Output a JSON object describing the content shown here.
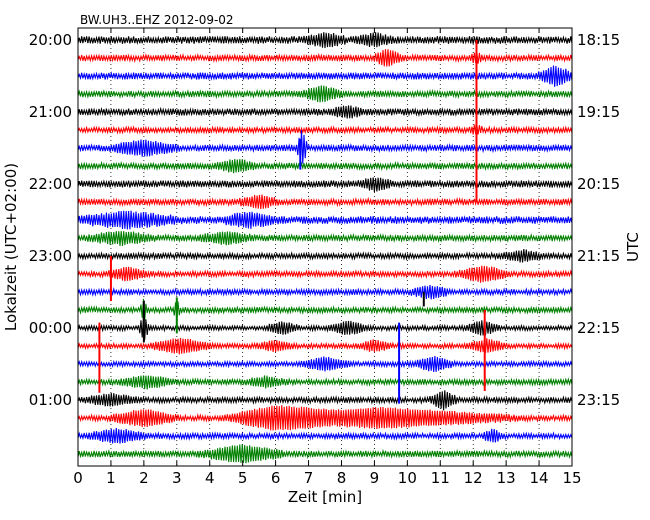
{
  "chart_data": {
    "type": "line",
    "title": "BW.UH3..EHZ 2012-09-02",
    "xlabel": "Zeit  [min]",
    "ylabel_left": "Lokalzeit (UTC+02:00)",
    "ylabel_right": "UTC",
    "xlim": [
      0,
      15
    ],
    "x_ticks": [
      "0",
      "1",
      "2",
      "3",
      "4",
      "5",
      "6",
      "7",
      "8",
      "9",
      "10",
      "11",
      "12",
      "13",
      "14",
      "15"
    ],
    "grid_vertical": "dotted",
    "trace_minutes": 15,
    "trace_colors": [
      "#000000",
      "#ff0000",
      "#0000ff",
      "#008000"
    ],
    "left_ticks": [
      {
        "label": "20:00",
        "trace": 0
      },
      {
        "label": "21:00",
        "trace": 4
      },
      {
        "label": "22:00",
        "trace": 8
      },
      {
        "label": "23:00",
        "trace": 12
      },
      {
        "label": "00:00",
        "trace": 16
      },
      {
        "label": "01:00",
        "trace": 20
      }
    ],
    "right_ticks": [
      {
        "label": "18:15",
        "trace": 0
      },
      {
        "label": "19:15",
        "trace": 4
      },
      {
        "label": "20:15",
        "trace": 8
      },
      {
        "label": "21:15",
        "trace": 12
      },
      {
        "label": "22:15",
        "trace": 16
      },
      {
        "label": "23:15",
        "trace": 20
      }
    ],
    "traces": [
      {
        "index": 0,
        "color": "#000000",
        "amplitude": 0.55,
        "events": [
          {
            "t": 7.5,
            "amp": 1.0,
            "dur": 0.6
          },
          {
            "t": 9.0,
            "amp": 0.9,
            "dur": 0.5
          }
        ]
      },
      {
        "index": 1,
        "color": "#ff0000",
        "amplitude": 0.45,
        "events": [
          {
            "t": 9.4,
            "amp": 1.4,
            "dur": 0.4
          },
          {
            "t": 12.1,
            "amp": 0.8,
            "dur": 0.2
          }
        ]
      },
      {
        "index": 2,
        "color": "#0000ff",
        "amplitude": 0.5,
        "events": [
          {
            "t": 14.5,
            "amp": 1.6,
            "dur": 0.5
          }
        ]
      },
      {
        "index": 3,
        "color": "#008000",
        "amplitude": 0.45,
        "events": [
          {
            "t": 7.4,
            "amp": 1.2,
            "dur": 0.6
          }
        ]
      },
      {
        "index": 4,
        "color": "#000000",
        "amplitude": 0.5,
        "events": [
          {
            "t": 8.2,
            "amp": 0.8,
            "dur": 0.5
          }
        ]
      },
      {
        "index": 5,
        "color": "#ff0000",
        "amplitude": 0.4,
        "events": [
          {
            "t": 12.1,
            "amp": 0.7,
            "dur": 0.2
          }
        ]
      },
      {
        "index": 6,
        "color": "#0000ff",
        "amplitude": 0.45,
        "events": [
          {
            "t": 2.0,
            "amp": 1.2,
            "dur": 1.0
          },
          {
            "t": 6.8,
            "amp": 3.2,
            "dur": 0.15
          }
        ]
      },
      {
        "index": 7,
        "color": "#008000",
        "amplitude": 0.45,
        "events": [
          {
            "t": 4.8,
            "amp": 1.0,
            "dur": 0.6
          }
        ]
      },
      {
        "index": 8,
        "color": "#000000",
        "amplitude": 0.5,
        "events": [
          {
            "t": 9.0,
            "amp": 0.9,
            "dur": 0.5
          }
        ]
      },
      {
        "index": 9,
        "color": "#ff0000",
        "amplitude": 0.45,
        "events": [
          {
            "t": 5.5,
            "amp": 1.0,
            "dur": 0.6
          }
        ]
      },
      {
        "index": 10,
        "color": "#0000ff",
        "amplitude": 0.55,
        "events": [
          {
            "t": 1.5,
            "amp": 1.2,
            "dur": 1.5
          },
          {
            "t": 5.2,
            "amp": 1.1,
            "dur": 0.8
          }
        ]
      },
      {
        "index": 11,
        "color": "#008000",
        "amplitude": 0.45,
        "events": [
          {
            "t": 1.3,
            "amp": 1.0,
            "dur": 1.0
          },
          {
            "t": 4.5,
            "amp": 0.9,
            "dur": 0.8
          }
        ]
      },
      {
        "index": 12,
        "color": "#000000",
        "amplitude": 0.4,
        "events": [
          {
            "t": 13.5,
            "amp": 0.9,
            "dur": 0.6
          }
        ]
      },
      {
        "index": 13,
        "color": "#ff0000",
        "amplitude": 0.4,
        "events": [
          {
            "t": 1.5,
            "amp": 1.0,
            "dur": 0.6
          },
          {
            "t": 12.3,
            "amp": 1.3,
            "dur": 0.8
          }
        ]
      },
      {
        "index": 14,
        "color": "#0000ff",
        "amplitude": 0.4,
        "events": [
          {
            "t": 10.7,
            "amp": 1.0,
            "dur": 0.6
          }
        ]
      },
      {
        "index": 15,
        "color": "#008000",
        "amplitude": 0.4,
        "events": [
          {
            "t": 2.0,
            "amp": 2.0,
            "dur": 0.1
          },
          {
            "t": 3.0,
            "amp": 1.8,
            "dur": 0.1
          }
        ]
      },
      {
        "index": 16,
        "color": "#000000",
        "amplitude": 0.35,
        "events": [
          {
            "t": 2.0,
            "amp": 2.2,
            "dur": 0.15
          },
          {
            "t": 6.2,
            "amp": 1.0,
            "dur": 0.5
          },
          {
            "t": 8.2,
            "amp": 1.1,
            "dur": 0.6
          },
          {
            "t": 12.3,
            "amp": 1.2,
            "dur": 0.5
          }
        ]
      },
      {
        "index": 17,
        "color": "#ff0000",
        "amplitude": 0.35,
        "events": [
          {
            "t": 3.1,
            "amp": 1.3,
            "dur": 0.9
          },
          {
            "t": 6.0,
            "amp": 0.8,
            "dur": 0.6
          },
          {
            "t": 9.0,
            "amp": 0.9,
            "dur": 0.5
          },
          {
            "t": 12.4,
            "amp": 1.1,
            "dur": 0.6
          }
        ]
      },
      {
        "index": 18,
        "color": "#0000ff",
        "amplitude": 0.35,
        "events": [
          {
            "t": 7.5,
            "amp": 1.1,
            "dur": 0.7
          },
          {
            "t": 10.8,
            "amp": 1.2,
            "dur": 0.6
          }
        ]
      },
      {
        "index": 19,
        "color": "#008000",
        "amplitude": 0.4,
        "events": [
          {
            "t": 2.1,
            "amp": 1.0,
            "dur": 0.8
          },
          {
            "t": 5.7,
            "amp": 0.8,
            "dur": 0.6
          }
        ]
      },
      {
        "index": 20,
        "color": "#000000",
        "amplitude": 0.4,
        "events": [
          {
            "t": 1.0,
            "amp": 0.9,
            "dur": 0.8
          },
          {
            "t": 11.1,
            "amp": 1.6,
            "dur": 0.4
          }
        ]
      },
      {
        "index": 21,
        "color": "#ff0000",
        "amplitude": 0.4,
        "events": [
          {
            "t": 2.0,
            "amp": 1.4,
            "dur": 1.0
          },
          {
            "t": 6.0,
            "amp": 1.6,
            "dur": 1.5
          },
          {
            "t": 9.2,
            "amp": 1.7,
            "dur": 3.8
          }
        ]
      },
      {
        "index": 22,
        "color": "#0000ff",
        "amplitude": 0.4,
        "events": [
          {
            "t": 1.2,
            "amp": 1.1,
            "dur": 0.9
          },
          {
            "t": 12.6,
            "amp": 1.0,
            "dur": 0.3
          }
        ]
      },
      {
        "index": 23,
        "color": "#008000",
        "amplitude": 0.45,
        "events": [
          {
            "t": 5.0,
            "amp": 1.4,
            "dur": 1.2
          }
        ]
      }
    ],
    "spikes": [
      {
        "t": 12.1,
        "from_trace": 0.0,
        "to_trace": 9.0,
        "color": "#ff0000"
      },
      {
        "t": 6.75,
        "from_trace": 5.5,
        "to_trace": 7.2,
        "color": "#0000ff"
      },
      {
        "t": 1.0,
        "from_trace": 12.0,
        "to_trace": 14.5,
        "color": "#ff0000"
      },
      {
        "t": 2.0,
        "from_trace": 14.5,
        "to_trace": 16.8,
        "color": "#000000"
      },
      {
        "t": 3.0,
        "from_trace": 14.3,
        "to_trace": 16.3,
        "color": "#008000"
      },
      {
        "t": 0.65,
        "from_trace": 15.7,
        "to_trace": 19.6,
        "color": "#ff0000"
      },
      {
        "t": 9.75,
        "from_trace": 15.7,
        "to_trace": 20.2,
        "color": "#0000ff"
      },
      {
        "t": 12.35,
        "from_trace": 15.0,
        "to_trace": 19.5,
        "color": "#ff0000"
      },
      {
        "t": 10.5,
        "from_trace": 14.0,
        "to_trace": 14.8,
        "color": "#000000"
      }
    ]
  }
}
